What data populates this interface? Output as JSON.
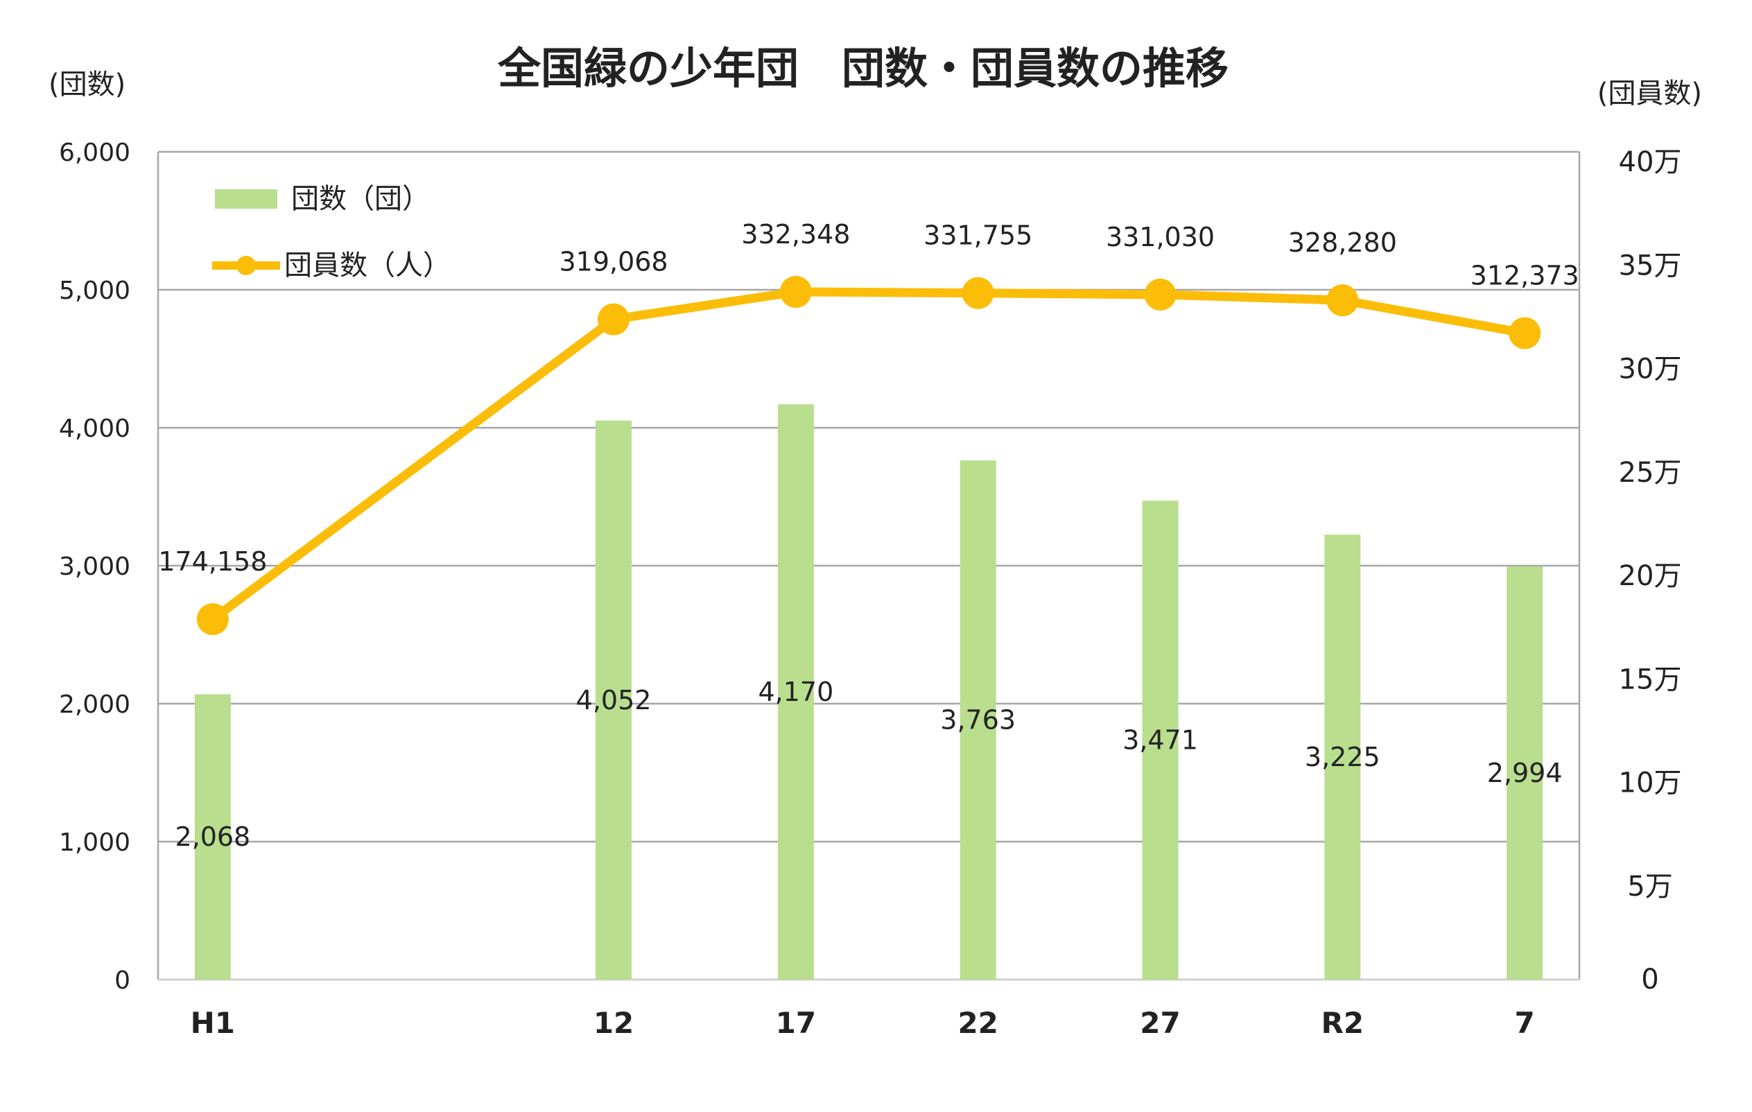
{
  "chart_data": {
    "type": "bar+line",
    "title": "全国緑の少年団　団数・団員数の推移",
    "left_axis_unit": "(団数)",
    "right_axis_unit": "(団員数)",
    "categories": [
      "H1",
      "12",
      "17",
      "22",
      "27",
      "R2",
      "7"
    ],
    "x_years": [
      1989,
      2000,
      2005,
      2010,
      2015,
      2020,
      2025
    ],
    "x_range": [
      1987.5,
      2026.5
    ],
    "left_axis": {
      "range": [
        0,
        6000
      ],
      "ticks": [
        0,
        1000,
        2000,
        3000,
        4000,
        5000,
        6000
      ],
      "tick_labels": [
        "0",
        "1,000",
        "2,000",
        "3,000",
        "4,000",
        "5,000",
        "6,000"
      ]
    },
    "right_axis": {
      "range": [
        0,
        400000
      ],
      "ticks": [
        0,
        50000,
        100000,
        150000,
        200000,
        250000,
        300000,
        350000,
        400000
      ],
      "tick_labels": [
        "0",
        "5万",
        "10万",
        "15万",
        "20万",
        "25万",
        "30万",
        "35万",
        "40万"
      ]
    },
    "grid": true,
    "legend_position": "top-left",
    "series": [
      {
        "name": "団数（団）",
        "type": "bar",
        "axis": "left",
        "color": "#b8de8e",
        "values": [
          2068,
          4052,
          4170,
          3763,
          3471,
          3225,
          2994
        ],
        "labels": [
          "2,068",
          "4,052",
          "4,170",
          "3,763",
          "3,471",
          "3,225",
          "2,994"
        ]
      },
      {
        "name": "団員数（人）",
        "type": "line",
        "axis": "right",
        "color": "#fbbd08",
        "values": [
          174158,
          319068,
          332348,
          331755,
          331030,
          328280,
          312373
        ],
        "labels": [
          "174,158",
          "319,068",
          "332,348",
          "331,755",
          "331,030",
          "328,280",
          "312,373"
        ]
      }
    ]
  }
}
